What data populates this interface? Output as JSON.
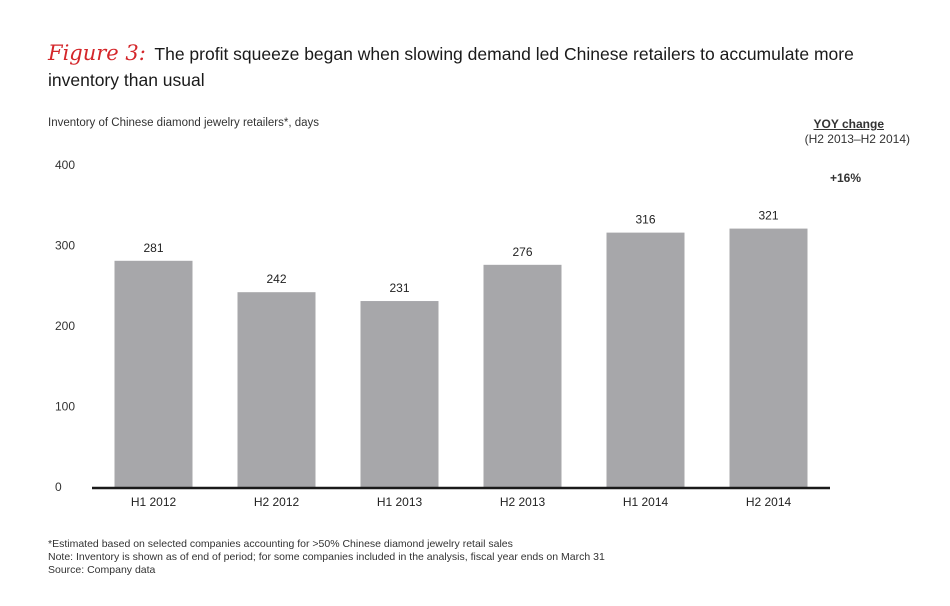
{
  "figure_label": "Figure 3:",
  "title": "The profit squeeze began when slowing demand led Chinese retailers to accumulate more inventory than usual",
  "yoy": {
    "heading": "YOY change",
    "range": "(H2 2013–H2 2014)",
    "value": "+16%"
  },
  "footnotes": {
    "estimate": "*Estimated based on selected companies accounting for >50% Chinese diamond jewelry retail sales",
    "note": "Note: Inventory is shown as of end of period; for some companies included in the analysis, fiscal year ends on March 31",
    "source": "Source: Company data"
  },
  "colors": {
    "bar": "#a7a7aa",
    "axis": "#1a1a1a",
    "figure_label": "#d4262a"
  },
  "chart_data": {
    "type": "bar",
    "title": "Inventory of Chinese diamond jewelry retailers*, days",
    "xlabel": "",
    "ylabel": "Inventory of Chinese diamond jewelry retailers*, days",
    "categories": [
      "H1 2012",
      "H2 2012",
      "H1 2013",
      "H2 2013",
      "H1 2014",
      "H2 2014"
    ],
    "values": [
      281,
      242,
      231,
      276,
      316,
      321
    ],
    "ylim": [
      0,
      400
    ],
    "yticks": [
      0,
      100,
      200,
      300,
      400
    ],
    "grid": false,
    "legend": "none"
  }
}
